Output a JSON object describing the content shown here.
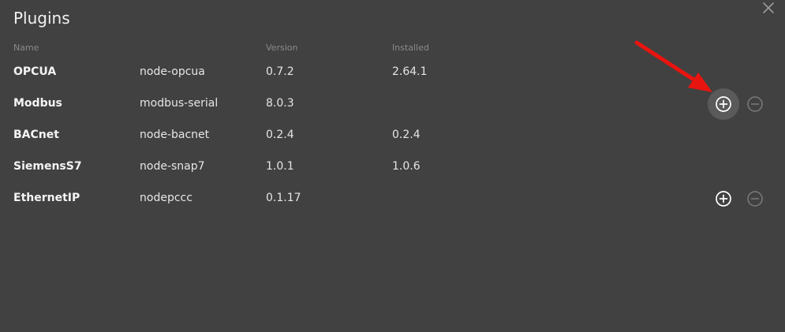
{
  "dialog": {
    "title": "Plugins",
    "close_icon": "close-icon"
  },
  "columns": {
    "name": "Name",
    "version": "Version",
    "installed": "Installed"
  },
  "plugins": [
    {
      "name": "OPCUA",
      "package": "node-opcua",
      "version": "0.7.2",
      "installed": "2.64.1",
      "actions": false
    },
    {
      "name": "Modbus",
      "package": "modbus-serial",
      "version": "8.0.3",
      "installed": "",
      "actions": true,
      "add_hovered": true
    },
    {
      "name": "BACnet",
      "package": "node-bacnet",
      "version": "0.2.4",
      "installed": "0.2.4",
      "actions": false
    },
    {
      "name": "SiemensS7",
      "package": "node-snap7",
      "version": "1.0.1",
      "installed": "1.0.6",
      "actions": false
    },
    {
      "name": "EthernetIP",
      "package": "nodepccc",
      "version": "0.1.17",
      "installed": "",
      "actions": true
    }
  ],
  "icons": {
    "add": "plus-circle-icon",
    "remove": "minus-circle-icon"
  },
  "colors": {
    "background": "#414141",
    "annotation_arrow": "#e8140f",
    "add_hover_bg": "#5a5a5a"
  }
}
